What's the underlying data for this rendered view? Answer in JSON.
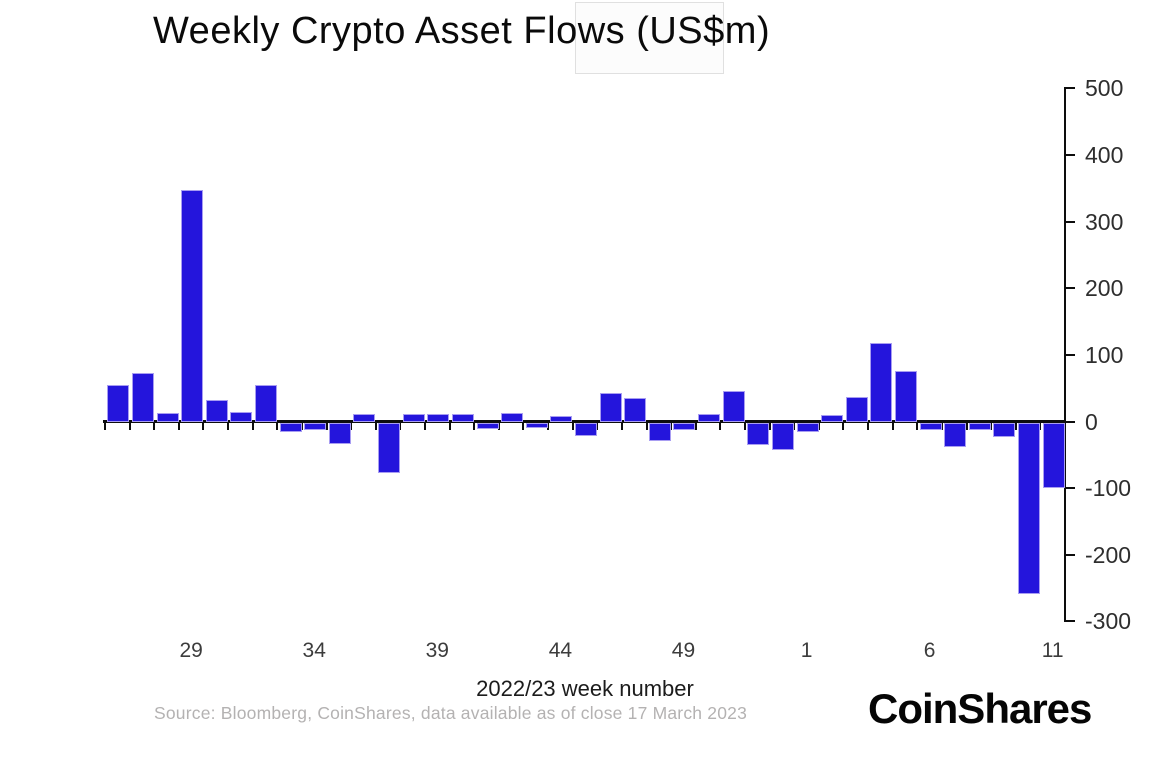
{
  "title": "Weekly Crypto Asset Flows (US$m)",
  "source_note": "Source: Bloomberg, CoinShares, data available as of close 17 March 2023",
  "brand_logo": "CoinShares",
  "colors": {
    "bar_fill": "#2415dc",
    "bar_edge": "#a89df2",
    "axis": "#0d0d0d",
    "y_tick_label": "#2e2e2e",
    "x_tick_label": "#3c3c3c",
    "axis_title": "#1c1c1c",
    "source_text": "#b4b2b2",
    "background": "#ffffff"
  },
  "chart_data": {
    "type": "bar",
    "title": "Weekly Crypto Asset Flows (US$m)",
    "xlabel": "2022/23 week number",
    "ylabel": "",
    "ylim": [
      -300,
      500
    ],
    "yticks": [
      500,
      400,
      300,
      200,
      100,
      0,
      -100,
      -200,
      -300
    ],
    "grid": false,
    "legend": "none",
    "y_axis_side": "right",
    "categories": [
      26,
      27,
      28,
      29,
      30,
      31,
      32,
      33,
      34,
      35,
      36,
      37,
      38,
      39,
      40,
      41,
      42,
      43,
      44,
      45,
      46,
      47,
      48,
      49,
      50,
      51,
      52,
      53,
      1,
      2,
      3,
      4,
      5,
      6,
      7,
      8,
      9,
      10,
      11
    ],
    "values": [
      53,
      70,
      10,
      345,
      30,
      12,
      53,
      -11,
      -8,
      -29,
      9,
      -73,
      9,
      9,
      9,
      -7,
      11,
      -5,
      6,
      -18,
      40,
      33,
      -25,
      -9,
      9,
      43,
      -31,
      -38,
      -11,
      7,
      34,
      115,
      73,
      -9,
      -34,
      -8,
      -19,
      -255,
      -95
    ],
    "xtick_labels": [
      "29",
      "34",
      "39",
      "44",
      "49",
      "1",
      "6",
      "11"
    ]
  }
}
